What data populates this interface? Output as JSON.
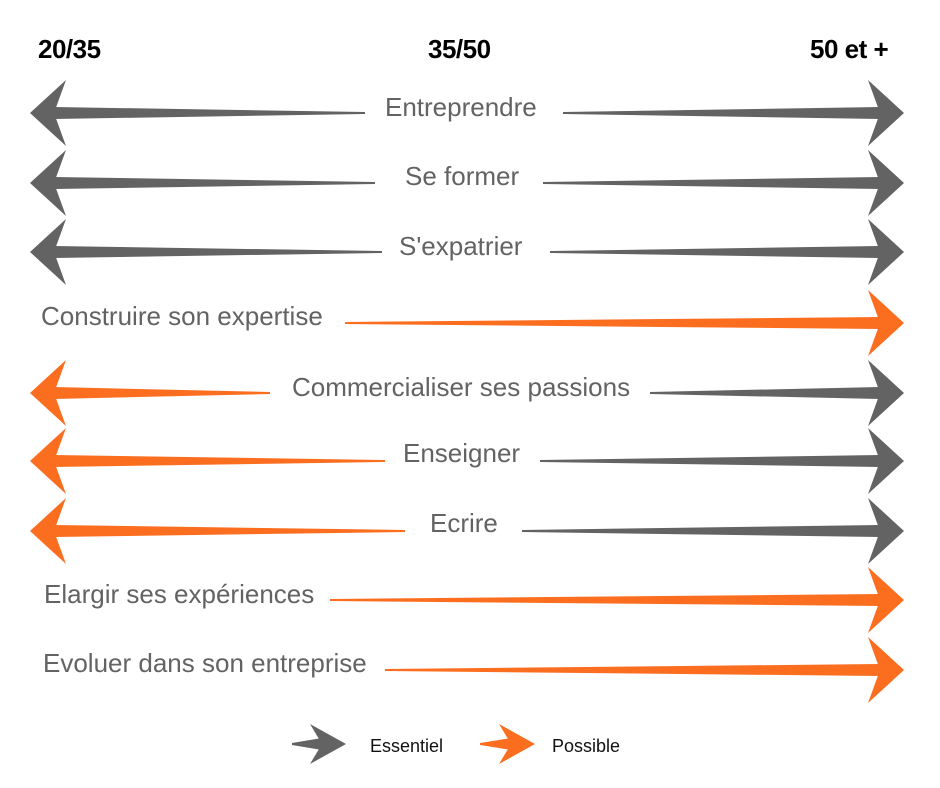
{
  "header": {
    "left": "20/35",
    "middle": "35/50",
    "right": "50 et +"
  },
  "colors": {
    "essentiel": "#636363",
    "possible": "#fb6e20"
  },
  "rows": [
    {
      "label": "Entreprendre",
      "left": "essentiel",
      "right": "essentiel"
    },
    {
      "label": "Se former",
      "left": "essentiel",
      "right": "essentiel"
    },
    {
      "label": "S'expatrier",
      "left": "essentiel",
      "right": "essentiel"
    },
    {
      "label": "Construire son expertise",
      "left": null,
      "right": "possible"
    },
    {
      "label": "Commercialiser ses passions",
      "left": "possible",
      "right": "essentiel"
    },
    {
      "label": "Enseigner",
      "left": "possible",
      "right": "essentiel"
    },
    {
      "label": "Ecrire",
      "left": "possible",
      "right": "essentiel"
    },
    {
      "label": "Elargir ses expériences",
      "left": null,
      "right": "possible"
    },
    {
      "label": "Evoluer dans son entreprise",
      "left": null,
      "right": "possible"
    }
  ],
  "legend": [
    {
      "label": "Essentiel",
      "kind": "essentiel"
    },
    {
      "label": "Possible",
      "kind": "possible"
    }
  ]
}
